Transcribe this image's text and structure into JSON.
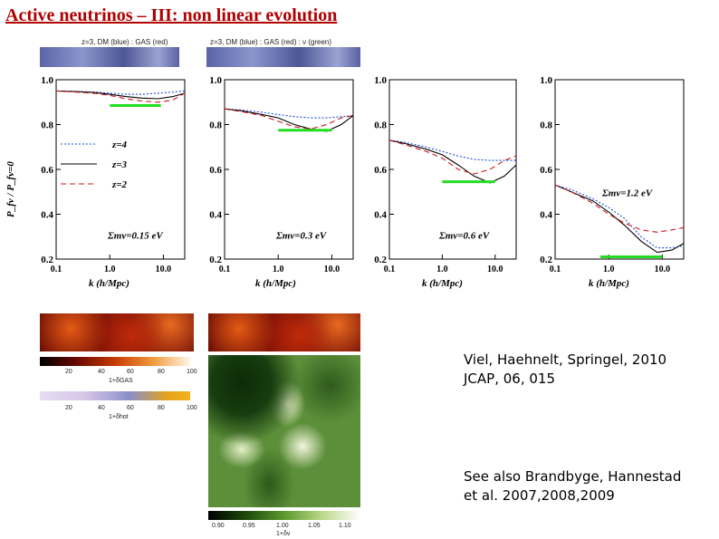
{
  "slide": {
    "title": "Active neutrinos – III: non linear evolution",
    "citation_1": "Viel, Haehnelt, Springel, 2010",
    "citation_2": "JCAP, 06, 015",
    "citation_3": "See also Brandbyge, Hannestad",
    "citation_4": "et al. 2007,2008,2009"
  },
  "strips": [
    {
      "label": "z=3, DM (blue) : GAS (red)"
    },
    {
      "label": "z=3, DM (blue) : GAS (red) : ν (green)"
    }
  ],
  "figure": {
    "ylabel": "P_fν / P_fν=0",
    "xlabel": "k (h/Mpc)",
    "yticks": [
      "1.0",
      "0.8",
      "0.6",
      "0.4",
      "0.2"
    ],
    "xticks": [
      "0.1",
      "1.0",
      "10.0"
    ],
    "legend": [
      {
        "label": "z=4",
        "color": "#1a4fd6",
        "dash": "2,2"
      },
      {
        "label": "z=3",
        "color": "#000000",
        "dash": ""
      },
      {
        "label": "z=2",
        "color": "#d01818",
        "dash": "6,4"
      }
    ],
    "highlight_color": "#22dd22"
  },
  "chart_data": [
    {
      "type": "line",
      "annotation": "Σmν=0.15 eV",
      "xlabel": "k (h/Mpc)",
      "ylabel": "P_fν / P_fν=0",
      "xlog": true,
      "xlim": [
        0.1,
        25
      ],
      "ylim": [
        0.2,
        1.0
      ],
      "highlight": {
        "x": [
          1.0,
          9.0
        ],
        "y": 0.885
      },
      "series": [
        {
          "name": "z=4",
          "x": [
            0.1,
            0.2,
            0.5,
            1,
            2,
            4,
            8,
            15,
            25
          ],
          "y": [
            0.95,
            0.948,
            0.945,
            0.94,
            0.935,
            0.935,
            0.94,
            0.945,
            0.95
          ]
        },
        {
          "name": "z=3",
          "x": [
            0.1,
            0.2,
            0.5,
            1,
            2,
            4,
            8,
            15,
            25
          ],
          "y": [
            0.95,
            0.948,
            0.943,
            0.935,
            0.925,
            0.918,
            0.915,
            0.925,
            0.94
          ]
        },
        {
          "name": "z=2",
          "x": [
            0.1,
            0.2,
            0.5,
            1,
            2,
            4,
            8,
            15,
            25
          ],
          "y": [
            0.95,
            0.946,
            0.94,
            0.93,
            0.915,
            0.905,
            0.9,
            0.91,
            0.94
          ]
        }
      ]
    },
    {
      "type": "line",
      "annotation": "Σmν=0.3 eV",
      "xlabel": "k (h/Mpc)",
      "ylabel": "",
      "xlog": true,
      "xlim": [
        0.1,
        25
      ],
      "ylim": [
        0.2,
        1.0
      ],
      "highlight": {
        "x": [
          1.0,
          10.0
        ],
        "y": 0.775
      },
      "series": [
        {
          "name": "z=4",
          "x": [
            0.1,
            0.2,
            0.5,
            1,
            2,
            4,
            8,
            15,
            25
          ],
          "y": [
            0.87,
            0.865,
            0.855,
            0.845,
            0.835,
            0.83,
            0.83,
            0.835,
            0.84
          ]
        },
        {
          "name": "z=3",
          "x": [
            0.1,
            0.2,
            0.5,
            1,
            2,
            4,
            8,
            15,
            25
          ],
          "y": [
            0.87,
            0.862,
            0.845,
            0.83,
            0.8,
            0.78,
            0.77,
            0.8,
            0.84
          ]
        },
        {
          "name": "z=2",
          "x": [
            0.1,
            0.2,
            0.5,
            1,
            2,
            4,
            8,
            15,
            25
          ],
          "y": [
            0.87,
            0.858,
            0.84,
            0.815,
            0.79,
            0.78,
            0.8,
            0.83,
            0.84
          ]
        }
      ]
    },
    {
      "type": "line",
      "annotation": "Σmν=0.6 eV",
      "xlabel": "k (h/Mpc)",
      "ylabel": "",
      "xlog": true,
      "xlim": [
        0.1,
        25
      ],
      "ylim": [
        0.2,
        1.0
      ],
      "highlight": {
        "x": [
          1.0,
          10.0
        ],
        "y": 0.545
      },
      "series": [
        {
          "name": "z=4",
          "x": [
            0.1,
            0.2,
            0.5,
            1,
            2,
            4,
            8,
            15,
            25
          ],
          "y": [
            0.73,
            0.72,
            0.7,
            0.68,
            0.66,
            0.645,
            0.64,
            0.64,
            0.64
          ]
        },
        {
          "name": "z=3",
          "x": [
            0.1,
            0.2,
            0.5,
            1,
            2,
            4,
            8,
            15,
            25
          ],
          "y": [
            0.73,
            0.715,
            0.69,
            0.665,
            0.62,
            0.57,
            0.54,
            0.57,
            0.62
          ]
        },
        {
          "name": "z=2",
          "x": [
            0.1,
            0.2,
            0.5,
            1,
            2,
            4,
            8,
            15,
            25
          ],
          "y": [
            0.73,
            0.71,
            0.68,
            0.65,
            0.6,
            0.58,
            0.6,
            0.64,
            0.66
          ]
        }
      ]
    },
    {
      "type": "line",
      "annotation": "Σmν=1.2 eV",
      "xlabel": "k (h/Mpc)",
      "ylabel": "",
      "xlog": true,
      "xlim": [
        0.1,
        25
      ],
      "ylim": [
        0.2,
        1.0
      ],
      "highlight": {
        "x": [
          0.7,
          10.0
        ],
        "y": 0.21
      },
      "series": [
        {
          "name": "z=4",
          "x": [
            0.1,
            0.2,
            0.5,
            1,
            2,
            4,
            8,
            15,
            25
          ],
          "y": [
            0.53,
            0.51,
            0.47,
            0.43,
            0.38,
            0.3,
            0.25,
            0.25,
            0.26
          ]
        },
        {
          "name": "z=3",
          "x": [
            0.1,
            0.2,
            0.5,
            1,
            2,
            4,
            8,
            15,
            25
          ],
          "y": [
            0.53,
            0.5,
            0.46,
            0.41,
            0.35,
            0.28,
            0.23,
            0.24,
            0.27
          ]
        },
        {
          "name": "z=2",
          "x": [
            0.1,
            0.2,
            0.5,
            1,
            2,
            4,
            8,
            15,
            25
          ],
          "y": [
            0.53,
            0.5,
            0.45,
            0.4,
            0.36,
            0.33,
            0.32,
            0.33,
            0.34
          ]
        }
      ]
    }
  ],
  "colorbars": [
    {
      "label": "1+δGAS",
      "ticks": [
        "20",
        "40",
        "60",
        "80",
        "100"
      ]
    },
    {
      "label": "1+δhot",
      "ticks": [
        "20",
        "40",
        "60",
        "80",
        "100"
      ]
    },
    {
      "label": "1+δν",
      "ticks": [
        "0.90",
        "0.95",
        "1.00",
        "1.05",
        "1.10"
      ]
    }
  ]
}
